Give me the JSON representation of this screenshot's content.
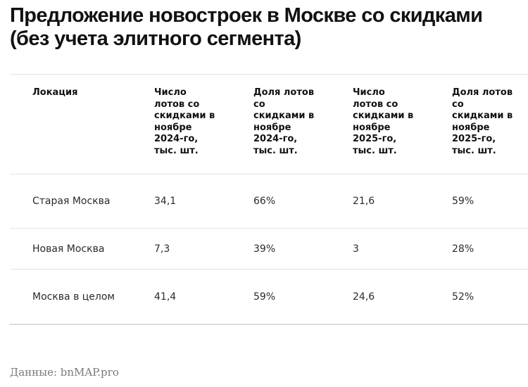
{
  "title": "Предложение новостроек в Москве со скидками (без учета элитного сегмента)",
  "table": {
    "headers": [
      "Локация",
      "Число лотов со скидками в ноябре 2024-го, тыс. шт.",
      "Доля лотов со скидками в ноябре 2024-го, тыс. шт.",
      "Число лотов со скидками в ноябре 2025-го, тыс. шт.",
      "Доля лотов со скидками в ноябре 2025-го, тыс. шт."
    ],
    "rows": [
      [
        "Старая Москва",
        "34,1",
        "66%",
        "21,6",
        "59%"
      ],
      [
        "Новая Москва",
        "7,3",
        "39%",
        "3",
        "28%"
      ],
      [
        "Москва в целом",
        "41,4",
        "59%",
        "24,6",
        "52%"
      ]
    ]
  },
  "chart_data": {
    "type": "table",
    "title": "Предложение новостроек в Москве со скидками (без учета элитного сегмента)",
    "columns": [
      "Локация",
      "Число лотов со скидками в ноябре 2024-го, тыс. шт.",
      "Доля лотов со скидками в ноябре 2024-го, тыс. шт.",
      "Число лотов со скидками в ноябре 2025-го, тыс. шт.",
      "Доля лотов со скидками в ноябре 2025-го, тыс. шт."
    ],
    "rows": [
      [
        "Старая Москва",
        34.1,
        "66%",
        21.6,
        "59%"
      ],
      [
        "Новая Москва",
        7.3,
        "39%",
        3,
        "28%"
      ],
      [
        "Москва в целом",
        41.4,
        "59%",
        24.6,
        "52%"
      ]
    ],
    "source": "Данные: bnMAP.pro"
  },
  "source": "Данные: bnMAP.pro",
  "colors": {
    "text": "#111111",
    "cell_text": "#2a2a2a",
    "divider": "#e3e3e3",
    "source_text": "#7a7a7a"
  }
}
